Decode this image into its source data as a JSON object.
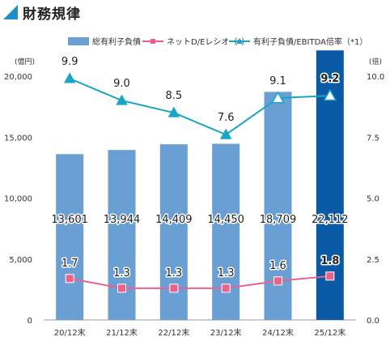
{
  "header": {
    "title": "財務規律",
    "accent_color": "#1E8FC7"
  },
  "chart_data": {
    "type": "bar",
    "categories": [
      "20/12末",
      "21/12末",
      "22/12末",
      "23/12末",
      "24/12末",
      "25/12末"
    ],
    "left_axis": {
      "unit": "(億円)",
      "ylim": [
        0,
        20000
      ],
      "ticks": [
        "0",
        "5,000",
        "10,000",
        "15,000",
        "20,000"
      ]
    },
    "right_axis": {
      "unit": "(倍)",
      "ylim": [
        0,
        10.0
      ],
      "ticks": [
        "0.0",
        "2.5",
        "5.0",
        "7.5",
        "10.0"
      ]
    },
    "grid": false,
    "legend_position": "top",
    "series": [
      {
        "name": "総有利子負債",
        "type": "bar",
        "axis": "left",
        "values": [
          13601,
          13944,
          14409,
          14450,
          18709,
          22112
        ],
        "labels": [
          "13,601",
          "13,944",
          "14,409",
          "14,450",
          "18,709",
          "22,112"
        ],
        "color": "#6A9FD4",
        "highlight_color": "#0B5AA6"
      },
      {
        "name": "ネットD/Eレシオ（*）",
        "type": "line",
        "axis": "right",
        "values": [
          1.7,
          1.3,
          1.3,
          1.3,
          1.6,
          1.8
        ],
        "labels": [
          "1.7",
          "1.3",
          "1.3",
          "1.3",
          "1.6",
          "1.8"
        ],
        "color": "#E8638B",
        "marker": "square"
      },
      {
        "name": "有利子負債/EBITDA倍率（*1）",
        "type": "line",
        "axis": "right",
        "values": [
          9.9,
          9.0,
          8.5,
          7.6,
          9.1,
          9.2
        ],
        "labels": [
          "9.9",
          "9.0",
          "8.5",
          "7.6",
          "9.1",
          "9.2"
        ],
        "color": "#1AA5C4",
        "marker": "triangle"
      }
    ]
  }
}
